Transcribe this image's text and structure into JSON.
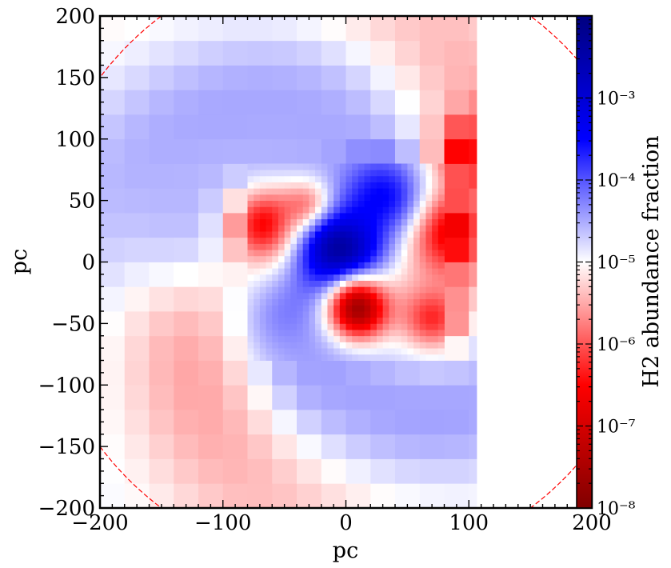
{
  "chart_data": {
    "type": "heatmap",
    "title": "",
    "xlabel": "pc",
    "ylabel": "pc",
    "xlim": [
      -200,
      200
    ],
    "ylim": [
      -200,
      200
    ],
    "x_ticks": [
      -200,
      -100,
      0,
      100,
      200
    ],
    "y_ticks": [
      200,
      150,
      100,
      50,
      0,
      -50,
      -100,
      -150,
      -200
    ],
    "x_tick_labels": [
      "−200",
      "−100",
      "0",
      "100",
      "200"
    ],
    "y_tick_labels": [
      "200",
      "150",
      "100",
      "50",
      "0",
      "−50",
      "−100",
      "−150",
      "−200"
    ],
    "colorbar": {
      "label": "H2 abundance fraction",
      "scale": "log",
      "range": [
        1e-08,
        0.01
      ],
      "colormap": "seismic_r",
      "tick_values": [
        1e-08,
        1e-07,
        1e-06,
        1e-05,
        0.0001,
        0.001
      ],
      "tick_labels": [
        "10⁻⁸",
        "10⁻⁷",
        "10⁻⁶",
        "10⁻⁵",
        "10⁻⁴",
        "10⁻³"
      ]
    },
    "overlay_circle": {
      "center": [
        0,
        0
      ],
      "radius": 250,
      "color": "#ff0000",
      "style": "dashed"
    },
    "features": [
      {
        "region": "core blob",
        "center": [
          0,
          5
        ],
        "extent_pc": 60,
        "log10_abundance": -2.3
      },
      {
        "region": "arc north of core",
        "center": [
          20,
          55
        ],
        "extent_pc": 50,
        "log10_abundance": -3.5
      },
      {
        "region": "red lobe south of core",
        "center": [
          10,
          -35
        ],
        "extent_pc": 35,
        "log10_abundance": -7.6
      },
      {
        "region": "red arm west",
        "center": [
          -60,
          25
        ],
        "extent_pc": 60,
        "log10_abundance": -6.7
      },
      {
        "region": "red arm east",
        "center": [
          90,
          40
        ],
        "extent_pc": 80,
        "log10_abundance": -6.8
      },
      {
        "region": "blue arm southwest",
        "center": [
          -50,
          -40
        ],
        "extent_pc": 70,
        "log10_abundance": -4.2
      },
      {
        "region": "blue northern sheet",
        "center": [
          -20,
          120
        ],
        "extent_pc": 120,
        "log10_abundance": -4.5
      },
      {
        "region": "outer halo",
        "center": [
          0,
          0
        ],
        "extent_pc": 200,
        "log10_abundance": -5.0
      }
    ],
    "colors": {
      "dark_red": "#800000",
      "red": "#ff0000",
      "white": "#ffffff",
      "blue": "#0000ff",
      "dark_blue": "#000080",
      "circle": "#ff0000"
    }
  }
}
